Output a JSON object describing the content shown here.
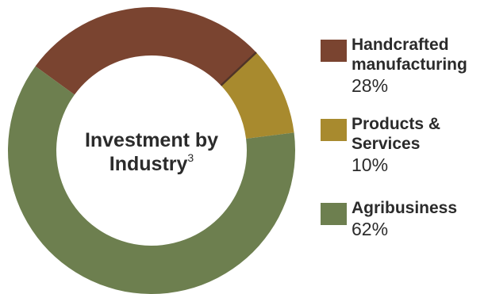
{
  "chart_data": {
    "type": "pie",
    "variant": "donut",
    "title": "Investment by Industry",
    "title_superscript": "3",
    "categories": [
      "Handcrafted manufacturing",
      "Products & Services",
      "Agribusiness"
    ],
    "values": [
      28,
      10,
      62
    ],
    "value_labels": [
      "28%",
      "10%",
      "62%"
    ],
    "unit": "%",
    "colors": [
      "#7a4430",
      "#a88a2e",
      "#6d7f4f"
    ],
    "divider_color": "#4f3428",
    "legend_position": "right"
  }
}
